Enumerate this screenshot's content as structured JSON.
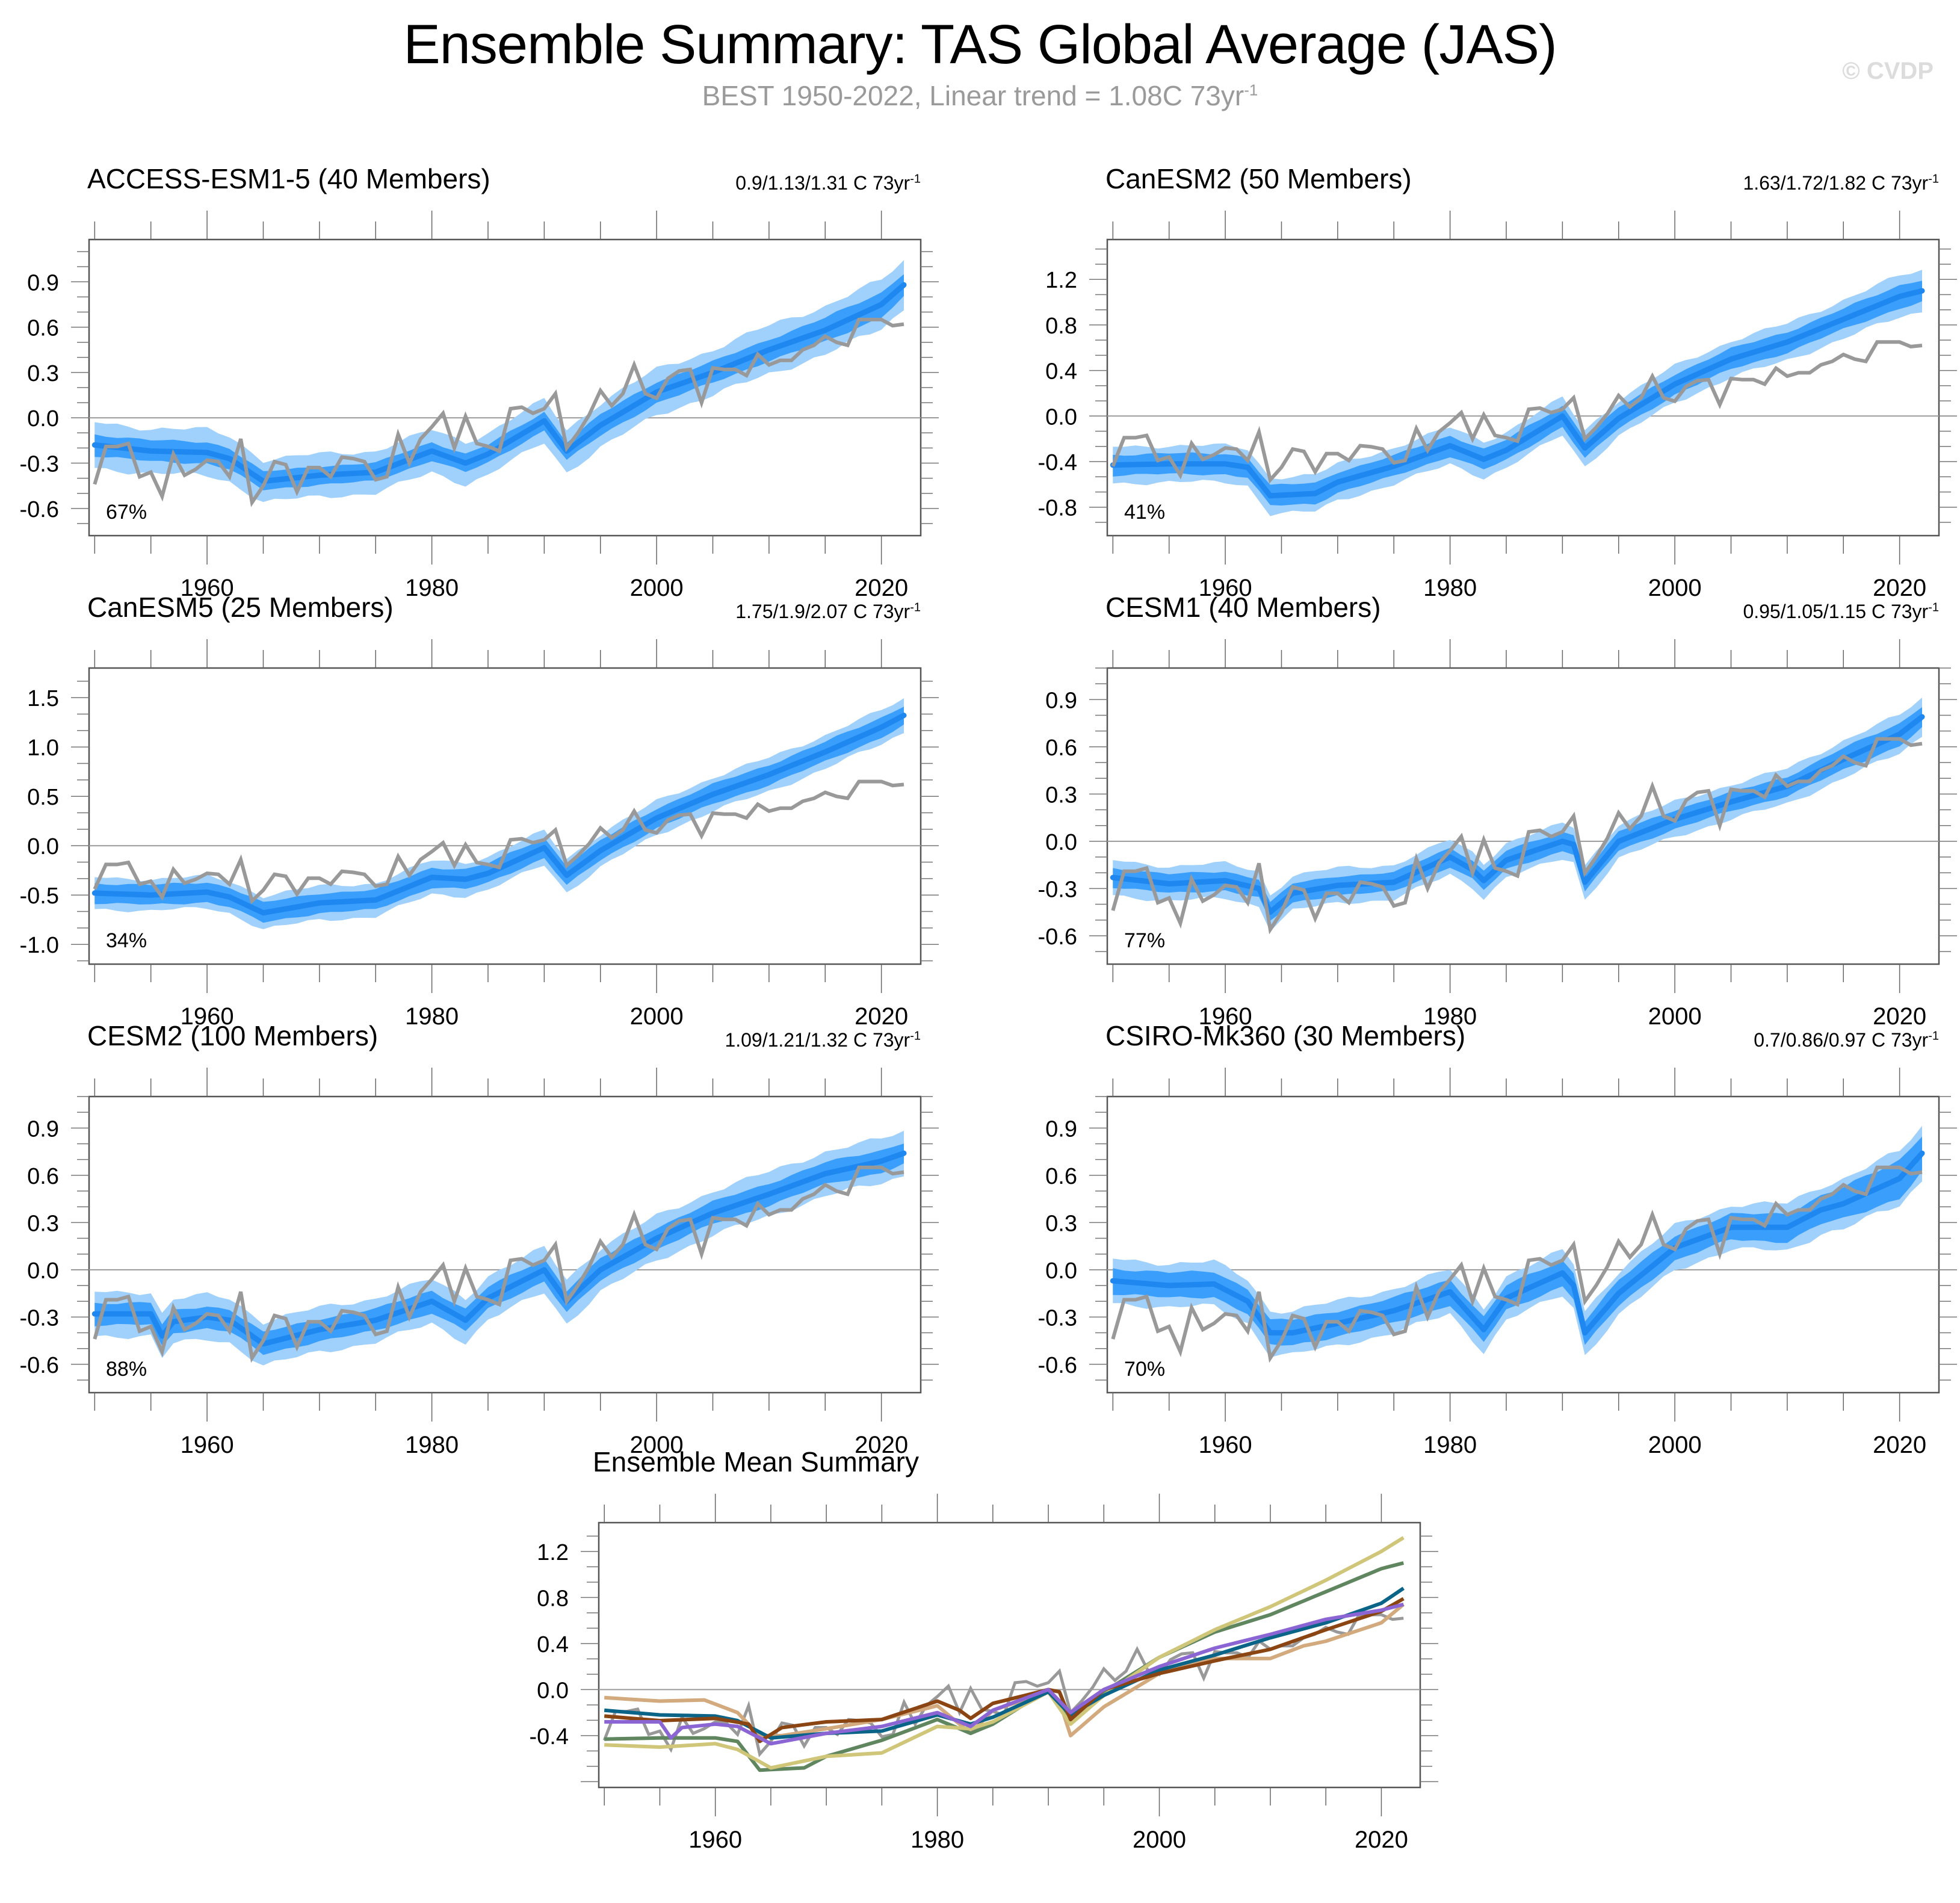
{
  "header": {
    "title": "Ensemble Summary: TAS Global Average (JAS)",
    "subtitle_main": "BEST 1950-2022, Linear trend = 1.08C 73yr",
    "subtitle_sup": "-1",
    "watermark": "© CVDP"
  },
  "colors": {
    "band_outer": "#a0d0fc",
    "band_inner": "#3a9ffc",
    "ens_mean": "#1e87f0",
    "obs": "#999999",
    "zero_line": "#9a9a9a"
  },
  "chart_data": [
    {
      "type": "area",
      "id": "access",
      "title": "ACCESS-ESM1-5 (40 Members)",
      "title_color": "#0a6488",
      "trend_text": "0.9/1.13/1.31 C 73yr",
      "trend_sup": "-1",
      "percent_label": "67%",
      "xlim": [
        1949.5,
        2023.5
      ],
      "ylim": [
        -0.78,
        1.18
      ],
      "yticks": [
        -0.6,
        -0.3,
        0.0,
        0.3,
        0.6,
        0.9
      ],
      "ytick_labels": [
        "-0.6",
        "-0.3",
        "0.0",
        "0.3",
        "0.6",
        "0.9"
      ],
      "xticks": [
        1960,
        1980,
        2000,
        2020
      ],
      "xtick_labels": [
        "1960",
        "1980",
        "2000",
        "2020"
      ],
      "anchors": {
        "years": [
          1950,
          1955,
          1960,
          1962,
          1965,
          1970,
          1975,
          1980,
          1983,
          1985,
          1990,
          1992,
          1995,
          2000,
          2005,
          2010,
          2015,
          2020,
          2022
        ],
        "mean": [
          -0.18,
          -0.22,
          -0.23,
          -0.27,
          -0.42,
          -0.38,
          -0.36,
          -0.22,
          -0.3,
          -0.24,
          -0.02,
          -0.22,
          -0.05,
          0.17,
          0.3,
          0.45,
          0.58,
          0.75,
          0.88
        ],
        "inner": [
          0.07,
          0.07,
          0.07,
          0.07,
          0.06,
          0.06,
          0.06,
          0.06,
          0.06,
          0.06,
          0.06,
          0.06,
          0.07,
          0.07,
          0.07,
          0.07,
          0.08,
          0.08,
          0.08
        ],
        "outer": [
          0.15,
          0.15,
          0.15,
          0.15,
          0.14,
          0.14,
          0.14,
          0.14,
          0.14,
          0.14,
          0.14,
          0.14,
          0.15,
          0.15,
          0.15,
          0.16,
          0.16,
          0.16,
          0.16
        ]
      },
      "obs_ref": "observations"
    },
    {
      "type": "area",
      "id": "canesm2",
      "title": "CanESM2 (50 Members)",
      "title_color": "#608660",
      "trend_text": "1.63/1.72/1.82 C 73yr",
      "trend_sup": "-1",
      "percent_label": "41%",
      "xlim": [
        1949.5,
        2023.5
      ],
      "ylim": [
        -1.05,
        1.55
      ],
      "yticks": [
        -0.8,
        -0.4,
        0.0,
        0.4,
        0.8,
        1.2
      ],
      "ytick_labels": [
        "-0.8",
        "-0.4",
        "0.0",
        "0.4",
        "0.8",
        "1.2"
      ],
      "xticks": [
        1960,
        1980,
        2000,
        2020
      ],
      "xtick_labels": [
        "1960",
        "1980",
        "2000",
        "2020"
      ],
      "anchors": {
        "years": [
          1950,
          1955,
          1960,
          1962,
          1964,
          1968,
          1970,
          1975,
          1980,
          1983,
          1985,
          1990,
          1992,
          1995,
          2000,
          2005,
          2010,
          2015,
          2020,
          2022
        ],
        "mean": [
          -0.43,
          -0.42,
          -0.42,
          -0.45,
          -0.7,
          -0.68,
          -0.58,
          -0.44,
          -0.26,
          -0.38,
          -0.3,
          0.0,
          -0.28,
          -0.02,
          0.28,
          0.5,
          0.65,
          0.85,
          1.05,
          1.1
        ],
        "inner": [
          0.09,
          0.09,
          0.09,
          0.09,
          0.09,
          0.09,
          0.09,
          0.09,
          0.09,
          0.09,
          0.09,
          0.09,
          0.09,
          0.09,
          0.09,
          0.09,
          0.09,
          0.09,
          0.1,
          0.1
        ],
        "outer": [
          0.16,
          0.16,
          0.16,
          0.16,
          0.16,
          0.16,
          0.16,
          0.16,
          0.16,
          0.16,
          0.16,
          0.16,
          0.16,
          0.16,
          0.16,
          0.16,
          0.16,
          0.17,
          0.18,
          0.18
        ]
      },
      "obs_ref": "observations"
    },
    {
      "type": "area",
      "id": "canesm5",
      "title": "CanESM5 (25 Members)",
      "title_color": "#cfc67a",
      "trend_text": "1.75/1.9/2.07 C 73yr",
      "trend_sup": "-1",
      "percent_label": "34%",
      "xlim": [
        1949.5,
        2023.5
      ],
      "ylim": [
        -1.2,
        1.8
      ],
      "yticks": [
        -1.0,
        -0.5,
        0.0,
        0.5,
        1.0,
        1.5
      ],
      "ytick_labels": [
        "-1.0",
        "-0.5",
        "0.0",
        "0.5",
        "1.0",
        "1.5"
      ],
      "xticks": [
        1960,
        1980,
        2000,
        2020
      ],
      "xtick_labels": [
        "1960",
        "1980",
        "2000",
        "2020"
      ],
      "anchors": {
        "years": [
          1950,
          1955,
          1960,
          1962,
          1965,
          1970,
          1975,
          1980,
          1983,
          1985,
          1990,
          1992,
          1995,
          2000,
          2005,
          2010,
          2015,
          2020,
          2022
        ],
        "mean": [
          -0.48,
          -0.5,
          -0.47,
          -0.52,
          -0.68,
          -0.58,
          -0.55,
          -0.32,
          -0.34,
          -0.28,
          -0.02,
          -0.3,
          -0.05,
          0.28,
          0.52,
          0.72,
          0.95,
          1.2,
          1.32
        ],
        "inner": [
          0.1,
          0.1,
          0.1,
          0.1,
          0.1,
          0.1,
          0.1,
          0.1,
          0.1,
          0.1,
          0.1,
          0.1,
          0.1,
          0.1,
          0.1,
          0.1,
          0.1,
          0.1,
          0.1
        ],
        "outer": [
          0.16,
          0.16,
          0.16,
          0.16,
          0.17,
          0.17,
          0.17,
          0.17,
          0.17,
          0.17,
          0.17,
          0.17,
          0.17,
          0.17,
          0.17,
          0.17,
          0.17,
          0.17,
          0.17
        ]
      },
      "obs_ref": "observations"
    },
    {
      "type": "area",
      "id": "cesm1",
      "title": "CESM1 (40 Members)",
      "title_color": "#8b4513",
      "trend_text": "0.95/1.05/1.15 C 73yr",
      "trend_sup": "-1",
      "percent_label": "77%",
      "xlim": [
        1949.5,
        2023.5
      ],
      "ylim": [
        -0.78,
        1.1
      ],
      "yticks": [
        -0.6,
        -0.3,
        0.0,
        0.3,
        0.6,
        0.9
      ],
      "ytick_labels": [
        "-0.6",
        "-0.3",
        "0.0",
        "0.3",
        "0.6",
        "0.9"
      ],
      "xticks": [
        1960,
        1980,
        2000,
        2020
      ],
      "xtick_labels": [
        "1960",
        "1980",
        "2000",
        "2020"
      ],
      "anchors": {
        "years": [
          1950,
          1955,
          1960,
          1963,
          1964,
          1966,
          1970,
          1975,
          1980,
          1982,
          1983,
          1985,
          1990,
          1991,
          1992,
          1995,
          2000,
          2005,
          2010,
          2015,
          2020,
          2022
        ],
        "mean": [
          -0.23,
          -0.27,
          -0.25,
          -0.3,
          -0.45,
          -0.33,
          -0.28,
          -0.26,
          -0.1,
          -0.18,
          -0.25,
          -0.12,
          0.0,
          -0.02,
          -0.26,
          0.0,
          0.14,
          0.25,
          0.35,
          0.52,
          0.68,
          0.79
        ],
        "inner": [
          0.06,
          0.06,
          0.06,
          0.06,
          0.06,
          0.06,
          0.06,
          0.06,
          0.06,
          0.06,
          0.06,
          0.06,
          0.06,
          0.06,
          0.06,
          0.06,
          0.06,
          0.06,
          0.06,
          0.07,
          0.07,
          0.07
        ],
        "outer": [
          0.11,
          0.11,
          0.11,
          0.11,
          0.11,
          0.11,
          0.11,
          0.11,
          0.11,
          0.11,
          0.11,
          0.11,
          0.11,
          0.11,
          0.11,
          0.11,
          0.11,
          0.11,
          0.11,
          0.12,
          0.12,
          0.12
        ]
      },
      "obs_ref": "observations"
    },
    {
      "type": "area",
      "id": "cesm2",
      "title": "CESM2 (100 Members)",
      "title_color": "#8b65d4",
      "trend_text": "1.09/1.21/1.32 C 73yr",
      "trend_sup": "-1",
      "percent_label": "88%",
      "xlim": [
        1949.5,
        2023.5
      ],
      "ylim": [
        -0.78,
        1.1
      ],
      "yticks": [
        -0.6,
        -0.3,
        0.0,
        0.3,
        0.6,
        0.9
      ],
      "ytick_labels": [
        "-0.6",
        "-0.3",
        "0.0",
        "0.3",
        "0.6",
        "0.9"
      ],
      "xticks": [
        1960,
        1980,
        2000,
        2020
      ],
      "xtick_labels": [
        "1960",
        "1980",
        "2000",
        "2020"
      ],
      "anchors": {
        "years": [
          1950,
          1955,
          1956,
          1957,
          1960,
          1962,
          1965,
          1970,
          1975,
          1980,
          1983,
          1985,
          1990,
          1992,
          1995,
          2000,
          2005,
          2010,
          2015,
          2020,
          2022
        ],
        "mean": [
          -0.28,
          -0.28,
          -0.42,
          -0.33,
          -0.3,
          -0.32,
          -0.47,
          -0.38,
          -0.32,
          -0.2,
          -0.32,
          -0.18,
          0.0,
          -0.2,
          0.0,
          0.2,
          0.36,
          0.48,
          0.61,
          0.69,
          0.74
        ],
        "inner": [
          0.07,
          0.07,
          0.07,
          0.07,
          0.07,
          0.07,
          0.07,
          0.07,
          0.07,
          0.07,
          0.07,
          0.07,
          0.07,
          0.07,
          0.07,
          0.07,
          0.07,
          0.07,
          0.07,
          0.07,
          0.07
        ],
        "outer": [
          0.14,
          0.14,
          0.14,
          0.14,
          0.14,
          0.14,
          0.14,
          0.14,
          0.14,
          0.14,
          0.14,
          0.14,
          0.14,
          0.14,
          0.14,
          0.14,
          0.14,
          0.14,
          0.14,
          0.14,
          0.14
        ]
      },
      "obs_ref": "observations"
    },
    {
      "type": "area",
      "id": "csiro",
      "title": "CSIRO-Mk360 (30 Members)",
      "title_color": "#d2aa7d",
      "trend_text": "0.7/0.86/0.97 C 73yr",
      "trend_sup": "-1",
      "percent_label": "70%",
      "xlim": [
        1949.5,
        2023.5
      ],
      "ylim": [
        -0.78,
        1.1
      ],
      "yticks": [
        -0.6,
        -0.3,
        0.0,
        0.3,
        0.6,
        0.9
      ],
      "ytick_labels": [
        "-0.6",
        "-0.3",
        "0.0",
        "0.3",
        "0.6",
        "0.9"
      ],
      "xticks": [
        1960,
        1980,
        2000,
        2020
      ],
      "xtick_labels": [
        "1960",
        "1980",
        "2000",
        "2020"
      ],
      "anchors": {
        "years": [
          1950,
          1955,
          1959,
          1962,
          1964,
          1966,
          1970,
          1975,
          1980,
          1983,
          1985,
          1990,
          1991,
          1992,
          1995,
          2000,
          2005,
          2010,
          2013,
          2015,
          2020,
          2022
        ],
        "mean": [
          -0.07,
          -0.1,
          -0.09,
          -0.2,
          -0.4,
          -0.4,
          -0.34,
          -0.26,
          -0.14,
          -0.38,
          -0.18,
          -0.02,
          -0.1,
          -0.4,
          -0.15,
          0.14,
          0.27,
          0.27,
          0.38,
          0.42,
          0.58,
          0.74
        ],
        "inner": [
          0.08,
          0.08,
          0.08,
          0.08,
          0.08,
          0.08,
          0.08,
          0.08,
          0.08,
          0.08,
          0.08,
          0.08,
          0.08,
          0.08,
          0.08,
          0.08,
          0.08,
          0.09,
          0.09,
          0.1,
          0.12,
          0.12
        ],
        "outer": [
          0.14,
          0.14,
          0.14,
          0.14,
          0.14,
          0.14,
          0.14,
          0.14,
          0.14,
          0.14,
          0.14,
          0.14,
          0.14,
          0.14,
          0.14,
          0.14,
          0.14,
          0.15,
          0.15,
          0.16,
          0.17,
          0.17
        ]
      },
      "obs_ref": "observations"
    },
    {
      "type": "line",
      "id": "summary",
      "title": "Ensemble Mean Summary",
      "xlim": [
        1949.5,
        2023.5
      ],
      "ylim": [
        -0.85,
        1.45
      ],
      "yticks": [
        -0.4,
        0.0,
        0.4,
        0.8,
        1.2
      ],
      "ytick_labels": [
        "-0.4",
        "0.0",
        "0.4",
        "0.8",
        "1.2"
      ],
      "xticks": [
        1960,
        1980,
        2000,
        2020
      ],
      "xtick_labels": [
        "1960",
        "1980",
        "2000",
        "2020"
      ],
      "series_refs": [
        "csiro",
        "canesm2",
        "canesm5",
        "access",
        "cesm1",
        "cesm2"
      ],
      "include_obs": true
    }
  ],
  "observations": {
    "name": "BEST",
    "years": [
      1950,
      1951,
      1952,
      1953,
      1954,
      1955,
      1956,
      1957,
      1958,
      1959,
      1960,
      1961,
      1962,
      1963,
      1964,
      1965,
      1966,
      1967,
      1968,
      1969,
      1970,
      1971,
      1972,
      1973,
      1974,
      1975,
      1976,
      1977,
      1978,
      1979,
      1980,
      1981,
      1982,
      1983,
      1984,
      1985,
      1986,
      1987,
      1988,
      1989,
      1990,
      1991,
      1992,
      1993,
      1994,
      1995,
      1996,
      1997,
      1998,
      1999,
      2000,
      2001,
      2002,
      2003,
      2004,
      2005,
      2006,
      2007,
      2008,
      2009,
      2010,
      2011,
      2012,
      2013,
      2014,
      2015,
      2016,
      2017,
      2018,
      2019,
      2020,
      2021,
      2022
    ],
    "values": [
      -0.44,
      -0.19,
      -0.19,
      -0.17,
      -0.39,
      -0.36,
      -0.52,
      -0.24,
      -0.38,
      -0.34,
      -0.28,
      -0.29,
      -0.39,
      -0.14,
      -0.56,
      -0.45,
      -0.29,
      -0.31,
      -0.49,
      -0.33,
      -0.33,
      -0.39,
      -0.26,
      -0.27,
      -0.29,
      -0.41,
      -0.39,
      -0.11,
      -0.3,
      -0.14,
      -0.06,
      0.03,
      -0.2,
      0.01,
      -0.17,
      -0.19,
      -0.22,
      0.06,
      0.07,
      0.03,
      0.06,
      0.16,
      -0.2,
      -0.1,
      0.02,
      0.18,
      0.08,
      0.16,
      0.35,
      0.16,
      0.13,
      0.26,
      0.31,
      0.32,
      0.1,
      0.33,
      0.32,
      0.32,
      0.28,
      0.42,
      0.35,
      0.38,
      0.38,
      0.45,
      0.48,
      0.54,
      0.5,
      0.48,
      0.65,
      0.65,
      0.65,
      0.61,
      0.62
    ]
  }
}
